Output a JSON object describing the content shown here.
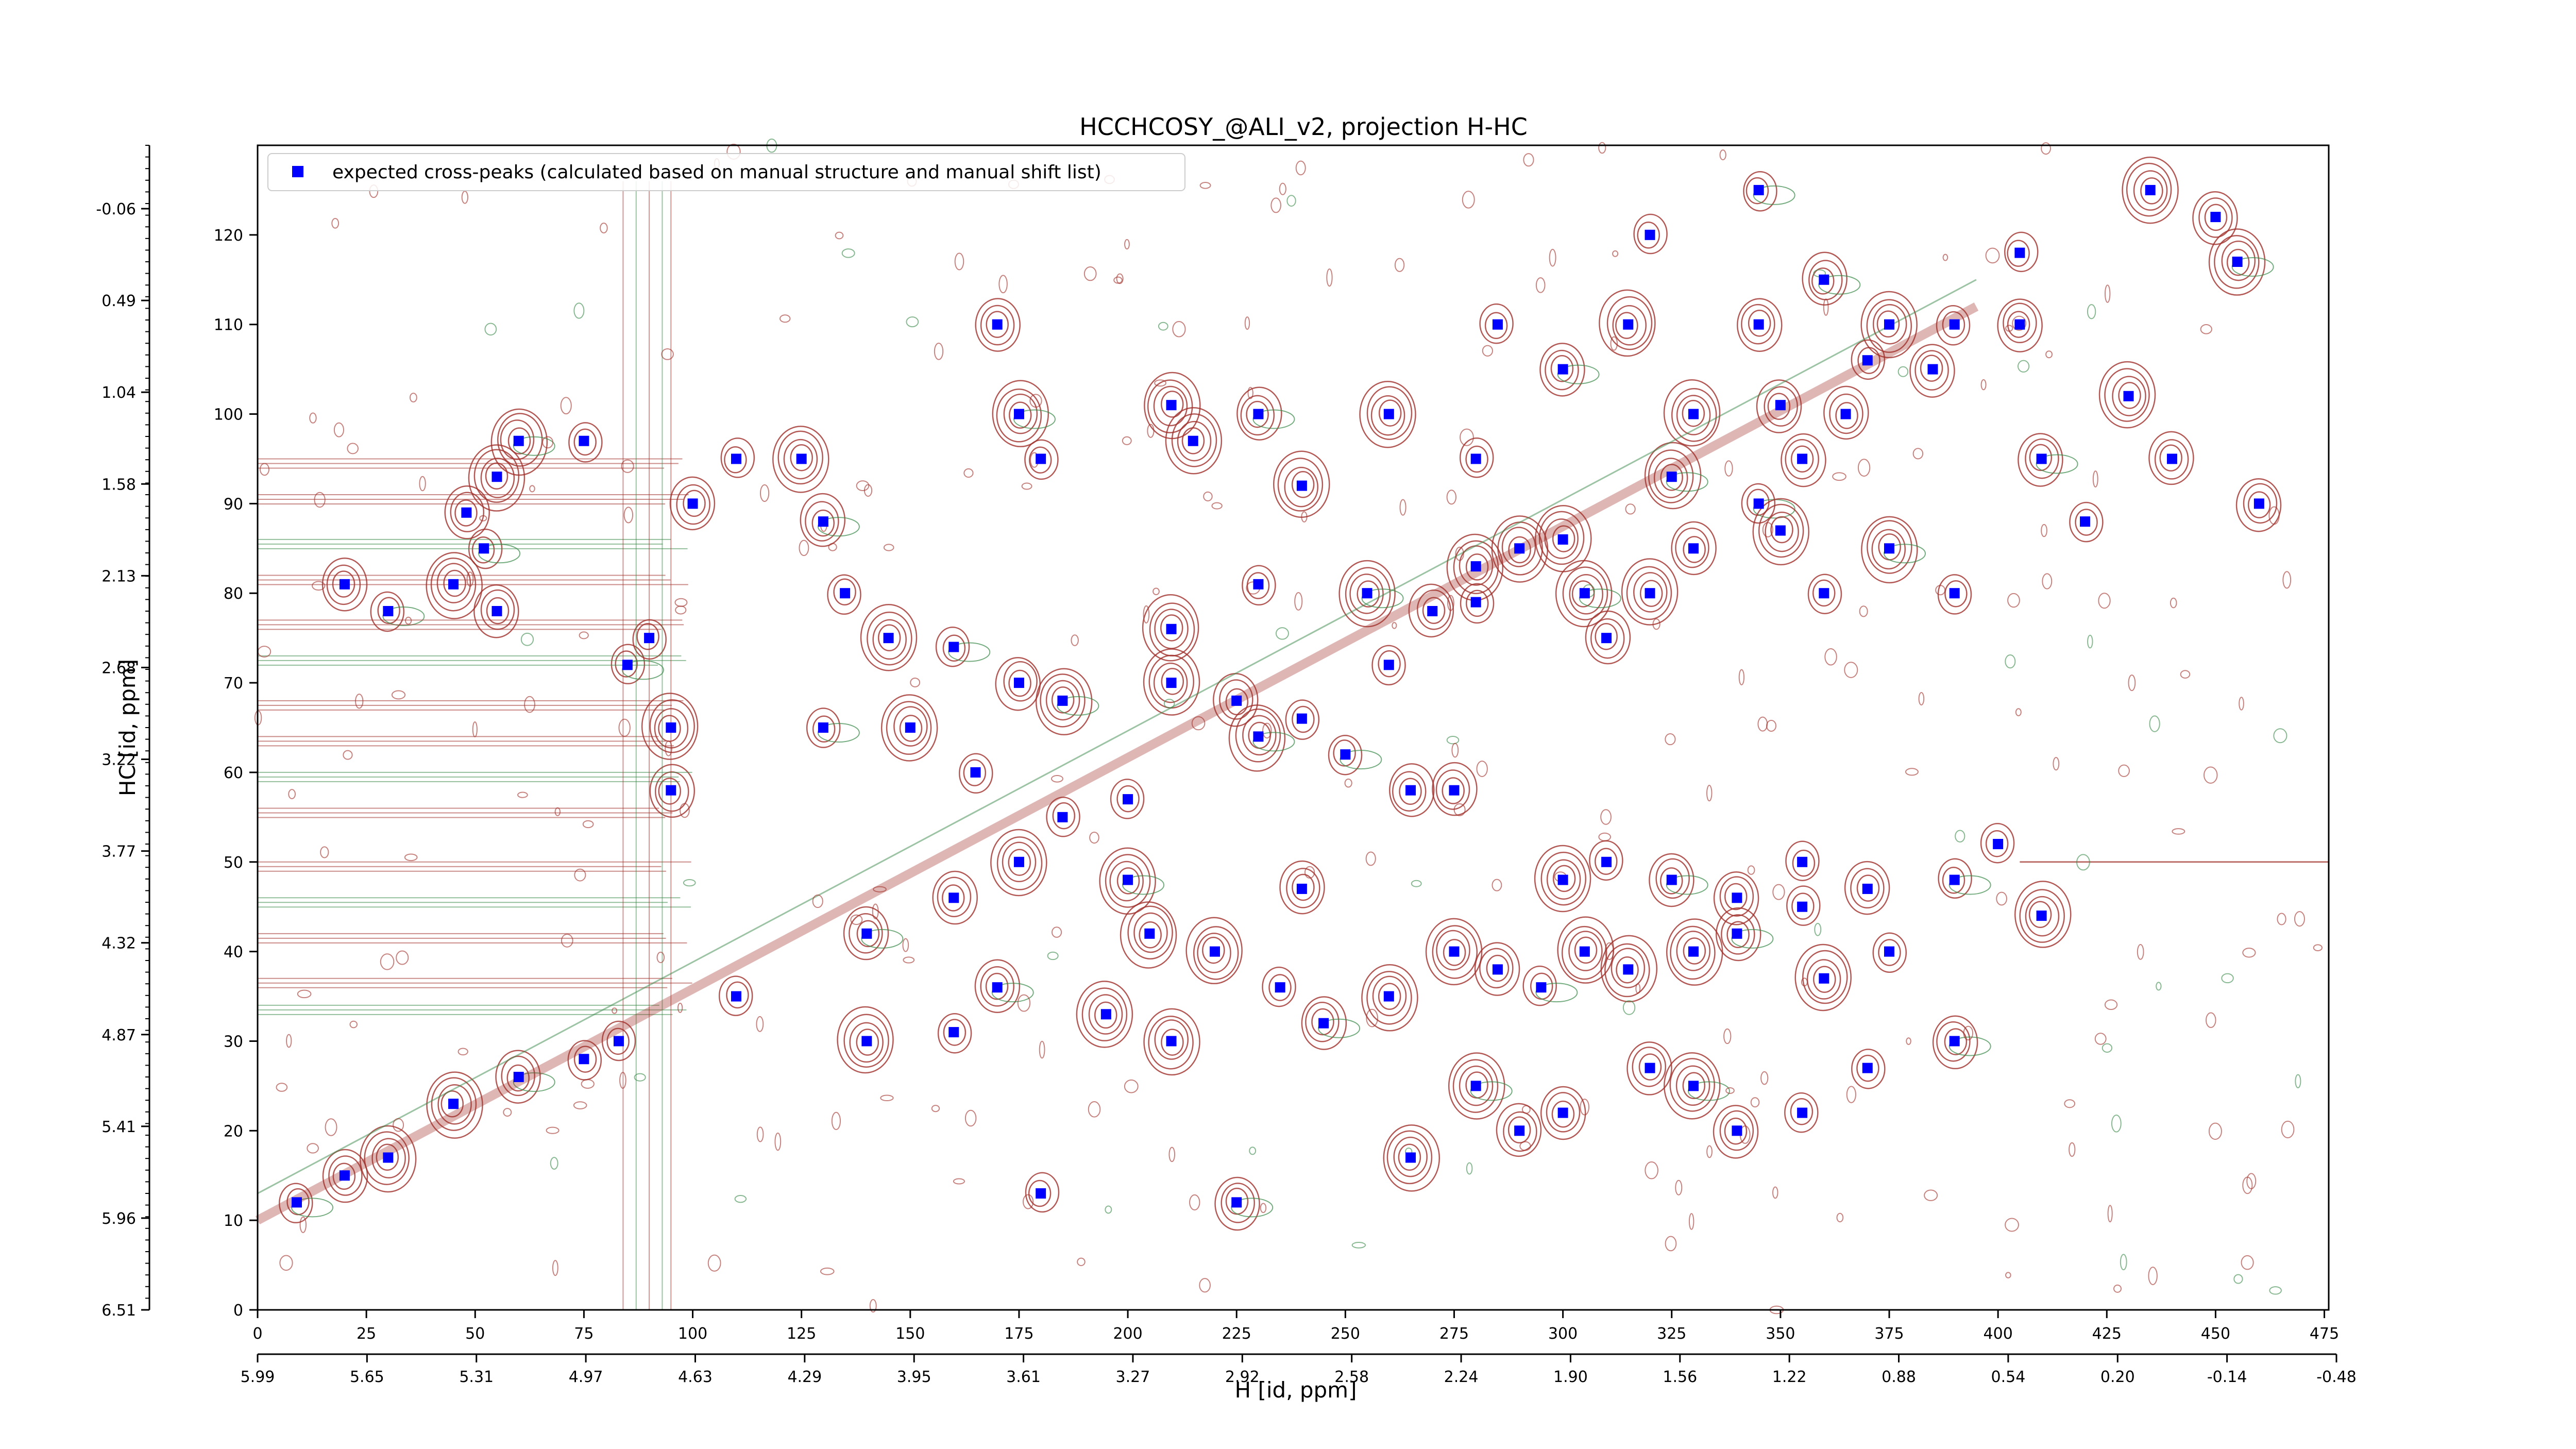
{
  "chart_data": {
    "type": "scatter",
    "title": "HCCHCOSY_@ALI_v2, projection H-HC",
    "xlabel": "H [id, ppm]",
    "ylabel": "HC [id, ppm]",
    "xlim": [
      0,
      476
    ],
    "ylim": [
      0,
      130
    ],
    "x_index_ticks": [
      "0",
      "25",
      "50",
      "75",
      "100",
      "125",
      "150",
      "175",
      "200",
      "225",
      "250",
      "275",
      "300",
      "325",
      "350",
      "375",
      "400",
      "425",
      "450",
      "475"
    ],
    "x_ppm_ticks": [
      "5.99",
      "5.65",
      "5.31",
      "4.97",
      "4.63",
      "4.29",
      "3.95",
      "3.61",
      "3.27",
      "2.92",
      "2.58",
      "2.24",
      "1.90",
      "1.56",
      "1.22",
      "0.88",
      "0.54",
      "0.20",
      "-0.14",
      "-0.48"
    ],
    "y_index_ticks": [
      "0",
      "10",
      "20",
      "30",
      "40",
      "50",
      "60",
      "70",
      "80",
      "90",
      "100",
      "110",
      "120"
    ],
    "y_ppm_ticks": [
      "6.51",
      "5.96",
      "5.41",
      "4.87",
      "4.32",
      "3.77",
      "3.22",
      "2.68",
      "2.13",
      "1.58",
      "1.04",
      "0.49",
      "-0.06"
    ],
    "legend": {
      "position": "top-left",
      "entries": [
        {
          "label": "expected cross-peaks (calculated based on manual structure and manual shift list)",
          "color": "#0000ff",
          "marker": "square"
        }
      ]
    },
    "grid": false,
    "contours": {
      "positive_color": "#a0302a",
      "negative_color": "#3a8a4a"
    },
    "series": [
      {
        "name": "expected cross-peaks (calculated based on manual structure and manual shift list)",
        "color": "#0000ff",
        "points": [
          [
            9,
            12
          ],
          [
            20,
            15
          ],
          [
            30,
            17
          ],
          [
            45,
            23
          ],
          [
            60,
            26
          ],
          [
            75,
            28
          ],
          [
            83,
            30
          ],
          [
            110,
            35
          ],
          [
            140,
            42
          ],
          [
            160,
            46
          ],
          [
            175,
            50
          ],
          [
            200,
            57
          ],
          [
            230,
            64
          ],
          [
            260,
            72
          ],
          [
            280,
            79
          ],
          [
            300,
            86
          ],
          [
            325,
            93
          ],
          [
            350,
            101
          ],
          [
            370,
            106
          ],
          [
            390,
            110
          ],
          [
            60,
            97
          ],
          [
            75,
            97
          ],
          [
            55,
            93
          ],
          [
            48,
            89
          ],
          [
            52,
            85
          ],
          [
            45,
            81
          ],
          [
            20,
            81
          ],
          [
            55,
            78
          ],
          [
            30,
            78
          ],
          [
            95,
            58
          ],
          [
            95,
            65
          ],
          [
            90,
            75
          ],
          [
            85,
            72
          ],
          [
            100,
            90
          ],
          [
            110,
            95
          ],
          [
            125,
            95
          ],
          [
            130,
            88
          ],
          [
            135,
            80
          ],
          [
            145,
            75
          ],
          [
            170,
            110
          ],
          [
            175,
            100
          ],
          [
            180,
            95
          ],
          [
            210,
            101
          ],
          [
            215,
            97
          ],
          [
            230,
            100
          ],
          [
            240,
            92
          ],
          [
            260,
            100
          ],
          [
            280,
            95
          ],
          [
            130,
            65
          ],
          [
            150,
            65
          ],
          [
            165,
            60
          ],
          [
            185,
            55
          ],
          [
            200,
            48
          ],
          [
            205,
            42
          ],
          [
            220,
            40
          ],
          [
            235,
            36
          ],
          [
            245,
            32
          ],
          [
            260,
            35
          ],
          [
            275,
            40
          ],
          [
            285,
            38
          ],
          [
            295,
            36
          ],
          [
            305,
            40
          ],
          [
            315,
            38
          ],
          [
            330,
            40
          ],
          [
            340,
            42
          ],
          [
            355,
            45
          ],
          [
            360,
            37
          ],
          [
            375,
            40
          ],
          [
            280,
            25
          ],
          [
            290,
            20
          ],
          [
            300,
            22
          ],
          [
            320,
            27
          ],
          [
            330,
            25
          ],
          [
            340,
            20
          ],
          [
            355,
            22
          ],
          [
            370,
            27
          ],
          [
            390,
            30
          ],
          [
            270,
            78
          ],
          [
            280,
            83
          ],
          [
            290,
            85
          ],
          [
            305,
            80
          ],
          [
            310,
            75
          ],
          [
            320,
            80
          ],
          [
            330,
            85
          ],
          [
            345,
            90
          ],
          [
            355,
            95
          ],
          [
            365,
            100
          ],
          [
            285,
            110
          ],
          [
            300,
            105
          ],
          [
            315,
            110
          ],
          [
            330,
            100
          ],
          [
            345,
            110
          ],
          [
            360,
            115
          ],
          [
            375,
            110
          ],
          [
            385,
            105
          ],
          [
            405,
            110
          ],
          [
            410,
            95
          ],
          [
            420,
            88
          ],
          [
            430,
            102
          ],
          [
            440,
            95
          ],
          [
            455,
            117
          ],
          [
            460,
            90
          ],
          [
            350,
            87
          ],
          [
            360,
            80
          ],
          [
            375,
            85
          ],
          [
            390,
            80
          ],
          [
            300,
            48
          ],
          [
            310,
            50
          ],
          [
            325,
            48
          ],
          [
            340,
            46
          ],
          [
            355,
            50
          ],
          [
            370,
            47
          ],
          [
            390,
            48
          ],
          [
            410,
            44
          ],
          [
            400,
            52
          ],
          [
            180,
            13
          ],
          [
            225,
            12
          ],
          [
            265,
            17
          ],
          [
            210,
            30
          ],
          [
            195,
            33
          ],
          [
            170,
            36
          ],
          [
            160,
            31
          ],
          [
            140,
            30
          ],
          [
            320,
            120
          ],
          [
            345,
            125
          ],
          [
            435,
            125
          ],
          [
            450,
            122
          ],
          [
            405,
            118
          ],
          [
            250,
            62
          ],
          [
            265,
            58
          ],
          [
            275,
            58
          ],
          [
            240,
            47
          ],
          [
            185,
            68
          ],
          [
            210,
            70
          ],
          [
            225,
            68
          ],
          [
            240,
            66
          ],
          [
            160,
            74
          ],
          [
            175,
            70
          ],
          [
            210,
            76
          ],
          [
            230,
            81
          ],
          [
            255,
            80
          ]
        ]
      }
    ]
  }
}
